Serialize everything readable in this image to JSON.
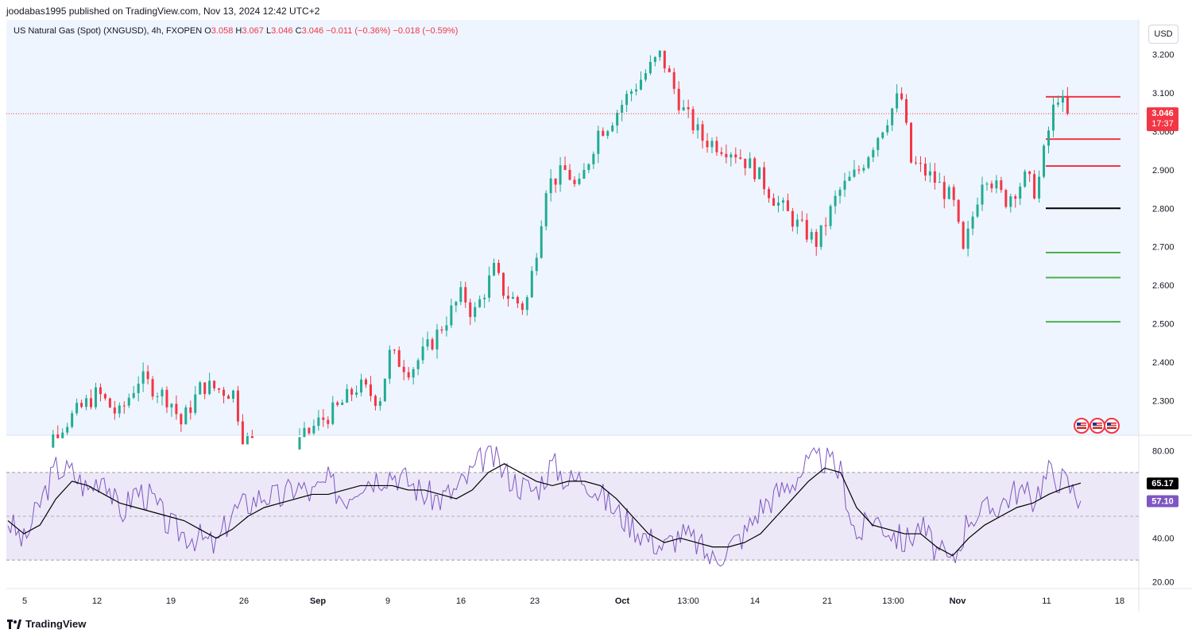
{
  "header": {
    "published_line": "joodabas1995 published on TradingView.com, Nov 13, 2024 12:42 UTC+2"
  },
  "legend": {
    "symbol": "US Natural Gas (Spot) (XNGUSD), 4h, FXOPEN",
    "o_label": "O",
    "o_value": "3.058",
    "h_label": "H",
    "h_value": "3.067",
    "l_label": "L",
    "l_value": "3.046",
    "c_label": "C",
    "c_value": "3.046",
    "change": "−0.011 (−0.36%)",
    "change2": "−0.018 (−0.59%)"
  },
  "currency_button": "USD",
  "footer": {
    "brand": "TradingView"
  },
  "colors": {
    "up": "#22ab94",
    "down": "#f23645",
    "panel_bg": "#eef5ff",
    "rsi_line": "#7e57c2",
    "rsi_ma": "#000000",
    "rsi_band": "#ede8f7",
    "level_red": "#f23645",
    "level_black": "#000000",
    "level_green": "#4caf50"
  },
  "chart_data": [
    {
      "type": "candlestick",
      "title": "US Natural Gas (Spot) (XNGUSD)",
      "timeframe": "4h",
      "price_axis_ticks": [
        "2.300",
        "2.400",
        "2.500",
        "2.600",
        "2.700",
        "2.800",
        "2.900",
        "3.000",
        "3.100",
        "3.200"
      ],
      "ylim": [
        2.21,
        3.29
      ],
      "last_price": "3.046",
      "countdown": "17:37",
      "horizontal_levels": [
        {
          "price": 3.09,
          "color": "red"
        },
        {
          "price": 2.98,
          "color": "red"
        },
        {
          "price": 2.91,
          "color": "red"
        },
        {
          "price": 2.8,
          "color": "black"
        },
        {
          "price": 2.685,
          "color": "green"
        },
        {
          "price": 2.62,
          "color": "green"
        },
        {
          "price": 2.505,
          "color": "green"
        }
      ],
      "price_path": [
        [
          "Aug 5",
          2.1
        ],
        [
          "Aug 8",
          2.22
        ],
        [
          "Aug 12",
          2.32
        ],
        [
          "Aug 14",
          2.26
        ],
        [
          "Aug 16",
          2.36
        ],
        [
          "Aug 19",
          2.3
        ],
        [
          "Aug 20",
          2.24
        ],
        [
          "Aug 22",
          2.34
        ],
        [
          "Aug 25",
          2.32
        ],
        [
          "Aug 26",
          2.2
        ],
        [
          "Aug 28",
          2.18
        ],
        [
          "Aug 30",
          2.15
        ],
        [
          "Sep 2",
          2.24
        ],
        [
          "Sep 4",
          2.28
        ],
        [
          "Sep 6",
          2.34
        ],
        [
          "Sep 8",
          2.3
        ],
        [
          "Sep 9",
          2.42
        ],
        [
          "Sep 11",
          2.38
        ],
        [
          "Sep 13",
          2.45
        ],
        [
          "Sep 16",
          2.58
        ],
        [
          "Sep 17",
          2.52
        ],
        [
          "Sep 19",
          2.64
        ],
        [
          "Sep 20",
          2.58
        ],
        [
          "Sep 22",
          2.54
        ],
        [
          "Sep 23",
          2.68
        ],
        [
          "Sep 24",
          2.86
        ],
        [
          "Sep 26",
          2.9
        ],
        [
          "Sep 27",
          2.84
        ],
        [
          "Sep 29",
          3.0
        ],
        [
          "Sep 30",
          3.02
        ],
        [
          "Oct 2",
          3.1
        ],
        [
          "Oct 5",
          3.2
        ],
        [
          "Oct 7",
          3.06
        ],
        [
          "Oct 9",
          2.98
        ],
        [
          "Oct 12",
          2.95
        ],
        [
          "Oct 14",
          2.9
        ],
        [
          "Oct 16",
          2.82
        ],
        [
          "Oct 18",
          2.76
        ],
        [
          "Oct 20",
          2.71
        ],
        [
          "Oct 22",
          2.84
        ],
        [
          "Oct 24",
          2.9
        ],
        [
          "Oct 26",
          3.0
        ],
        [
          "Oct 28",
          3.1
        ],
        [
          "Oct 29",
          2.92
        ],
        [
          "Oct 31",
          2.88
        ],
        [
          "Nov 2",
          2.82
        ],
        [
          "Nov 3",
          2.68
        ],
        [
          "Nov 5",
          2.9
        ],
        [
          "Nov 7",
          2.82
        ],
        [
          "Nov 9",
          2.88
        ],
        [
          "Nov 10",
          2.84
        ],
        [
          "Nov 11",
          2.98
        ],
        [
          "Nov 12",
          3.1
        ],
        [
          "Nov 13",
          3.046
        ]
      ]
    },
    {
      "type": "line",
      "title": "RSI",
      "y_ticks": [
        "20.00",
        "40.00",
        "80.00"
      ],
      "ylim": [
        17,
        87
      ],
      "bands": [
        30,
        50,
        70
      ],
      "rsi_value": "57.10",
      "ma_value": "65.17",
      "series": [
        {
          "values": [
            48,
            38,
            56,
            72,
            70,
            62,
            70,
            50,
            62,
            58,
            46,
            42,
            40,
            36,
            52,
            56,
            60,
            58,
            64,
            60,
            66,
            58,
            66,
            68,
            70,
            66,
            60,
            58,
            62,
            70,
            80,
            70,
            64,
            62,
            74,
            66,
            68,
            60,
            52,
            46,
            40,
            36,
            42,
            38,
            30,
            36,
            42,
            54,
            60,
            66,
            74,
            76,
            70,
            40,
            50,
            44,
            38,
            46,
            34,
            28,
            50,
            52,
            56,
            62,
            58,
            70,
            66,
            57
          ]
        },
        {
          "values": [
            48,
            42,
            46,
            58,
            66,
            64,
            60,
            56,
            54,
            52,
            50,
            48,
            44,
            40,
            44,
            50,
            54,
            56,
            58,
            60,
            60,
            62,
            64,
            64,
            64,
            62,
            62,
            60,
            58,
            62,
            70,
            74,
            70,
            66,
            64,
            66,
            66,
            64,
            58,
            50,
            42,
            38,
            40,
            38,
            36,
            36,
            38,
            42,
            50,
            58,
            66,
            72,
            70,
            54,
            46,
            44,
            42,
            42,
            36,
            32,
            40,
            46,
            50,
            54,
            56,
            60,
            63,
            65.17
          ]
        }
      ]
    }
  ],
  "x_axis_ticks": [
    "5",
    "12",
    "19",
    "26",
    "Sep",
    "9",
    "16",
    "23",
    "Oct",
    "13:00",
    "14",
    "21",
    "13:00",
    "Nov",
    "11",
    "18"
  ]
}
